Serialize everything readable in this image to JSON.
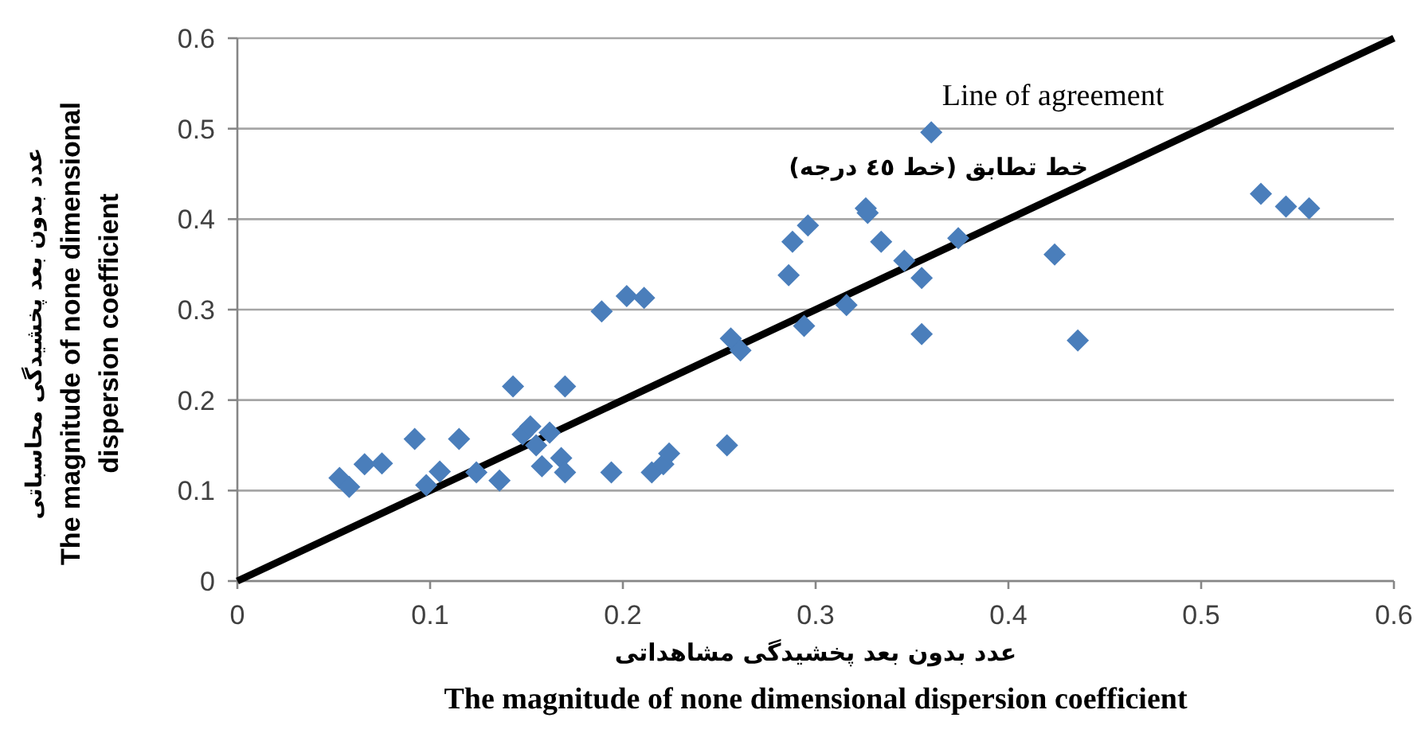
{
  "chart_data": {
    "type": "scatter",
    "xlabel": "عدد بدون بعد پخشیدگی مشاهداتی\nThe magnitude of none dimensional dispersion coefficient",
    "ylabel": "عدد بدون بعد پخشیدگی محاسباتی\nThe magnitude of none dimensional\ndispersion coefficient",
    "xlim": [
      0,
      0.6
    ],
    "ylim": [
      0,
      0.6
    ],
    "xticks": [
      0,
      0.1,
      0.2,
      0.3,
      0.4,
      0.5,
      0.6
    ],
    "yticks": [
      0,
      0.1,
      0.2,
      0.3,
      0.4,
      0.5,
      0.6
    ],
    "grid": "y",
    "marker": "diamond",
    "annotations": [
      "Line of agreement",
      "خط تطابق (خط ٤٥ درجه)"
    ],
    "series": [
      {
        "type": "scatter",
        "color": "#4a7ebb",
        "x": [
          0.053,
          0.058,
          0.066,
          0.075,
          0.092,
          0.098,
          0.105,
          0.115,
          0.124,
          0.136,
          0.143,
          0.148,
          0.152,
          0.155,
          0.158,
          0.162,
          0.168,
          0.17,
          0.17,
          0.189,
          0.194,
          0.202,
          0.211,
          0.215,
          0.221,
          0.224,
          0.254,
          0.256,
          0.261,
          0.286,
          0.288,
          0.294,
          0.296,
          0.316,
          0.326,
          0.327,
          0.334,
          0.346,
          0.355,
          0.355,
          0.36,
          0.374,
          0.424,
          0.436,
          0.531,
          0.544,
          0.556
        ],
        "values": [
          0.114,
          0.104,
          0.129,
          0.13,
          0.157,
          0.106,
          0.121,
          0.157,
          0.12,
          0.111,
          0.215,
          0.162,
          0.171,
          0.15,
          0.127,
          0.164,
          0.136,
          0.12,
          0.215,
          0.298,
          0.12,
          0.315,
          0.313,
          0.12,
          0.129,
          0.141,
          0.15,
          0.268,
          0.255,
          0.338,
          0.375,
          0.282,
          0.393,
          0.305,
          0.412,
          0.407,
          0.375,
          0.354,
          0.335,
          0.273,
          0.496,
          0.379,
          0.361,
          0.266,
          0.428,
          0.414,
          0.412
        ]
      },
      {
        "type": "line",
        "color": "#000000",
        "x": [
          0,
          0.6
        ],
        "values": [
          0,
          0.6
        ],
        "line_style": "solid",
        "marker": "none"
      }
    ]
  }
}
